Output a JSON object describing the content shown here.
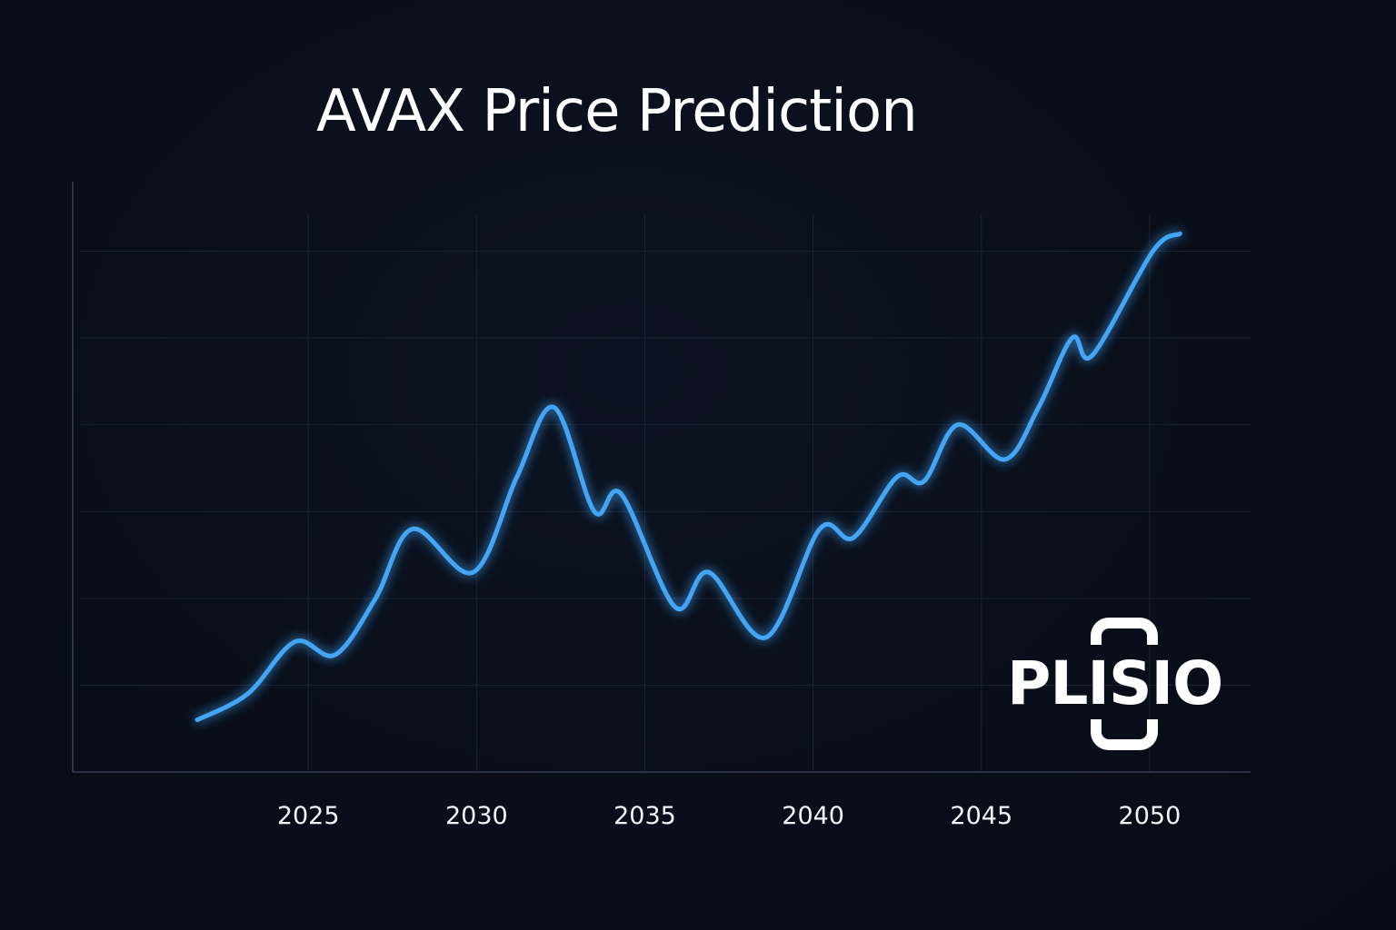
{
  "title": "AVAX Price Prediction",
  "logo": {
    "text": "PLISIO",
    "color": "#ffffff"
  },
  "colors": {
    "background": "#090e19",
    "line": "#42a5f5",
    "grid": "#1b2434",
    "text": "#ffffff"
  },
  "chart_data": {
    "type": "line",
    "title": "AVAX Price Prediction",
    "xlabel": "",
    "ylabel": "",
    "x_ticks": [
      2025,
      2030,
      2035,
      2040,
      2045,
      2050
    ],
    "xlim": [
      2018,
      2053
    ],
    "ylim": [
      0,
      6.8
    ],
    "grid": true,
    "legend": "none",
    "series": [
      {
        "x": [
          2021.7,
          2023.2,
          2024.6,
          2025.8,
          2027,
          2028.1,
          2029.9,
          2031.2,
          2032.3,
          2033.5,
          2034.3,
          2035.9,
          2036.9,
          2038.6,
          2040.2,
          2041.2,
          2042.5,
          2043.3,
          2044.3,
          2045.7,
          2046.7,
          2047.7,
          2048.3,
          2050.1,
          2050.9
        ],
        "values": [
          0.6,
          0.9,
          1.5,
          1.35,
          2.0,
          2.8,
          2.3,
          3.4,
          4.2,
          3.0,
          3.2,
          1.9,
          2.3,
          1.55,
          2.8,
          2.7,
          3.4,
          3.35,
          4.0,
          3.6,
          4.2,
          5.0,
          4.8,
          6.0,
          6.2
        ]
      }
    ]
  }
}
